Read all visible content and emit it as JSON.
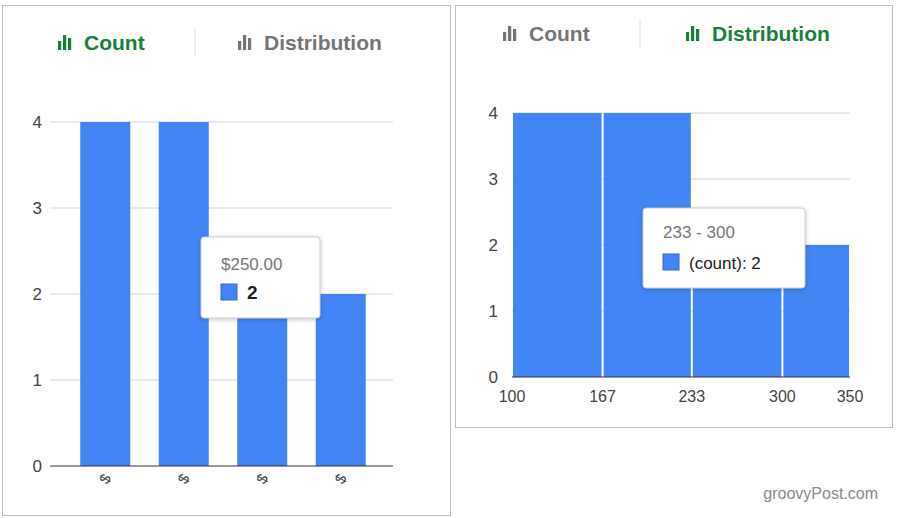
{
  "chart_data": [
    {
      "type": "bar",
      "tabs": [
        {
          "label": "Count",
          "active": true
        },
        {
          "label": "Distribution",
          "active": false
        }
      ],
      "categories": [
        "$",
        "$",
        "$",
        "$"
      ],
      "values": [
        4,
        4,
        2,
        2
      ],
      "color": "#4285f4",
      "ylim": [
        0,
        4
      ],
      "yticks": [
        0,
        1,
        2,
        3,
        4
      ],
      "grid": true,
      "annotations": [
        {
          "label": "$250.00",
          "text": "2"
        }
      ]
    },
    {
      "type": "histogram",
      "tabs": [
        {
          "label": "Count",
          "active": false
        },
        {
          "label": "Distribution",
          "active": true
        }
      ],
      "bins": [
        100,
        167,
        233,
        300,
        350
      ],
      "values": [
        4,
        4,
        2,
        2
      ],
      "color": "#4285f4",
      "xlim": [
        100,
        350
      ],
      "xticks": [
        100,
        167,
        233,
        300,
        350
      ],
      "ylim": [
        0,
        4
      ],
      "yticks": [
        0,
        1,
        2,
        3,
        4
      ],
      "grid": true,
      "annotations": [
        {
          "label": "233 - 300",
          "text": "(count): 2"
        }
      ]
    }
  ],
  "watermark": "groovyPost.com"
}
